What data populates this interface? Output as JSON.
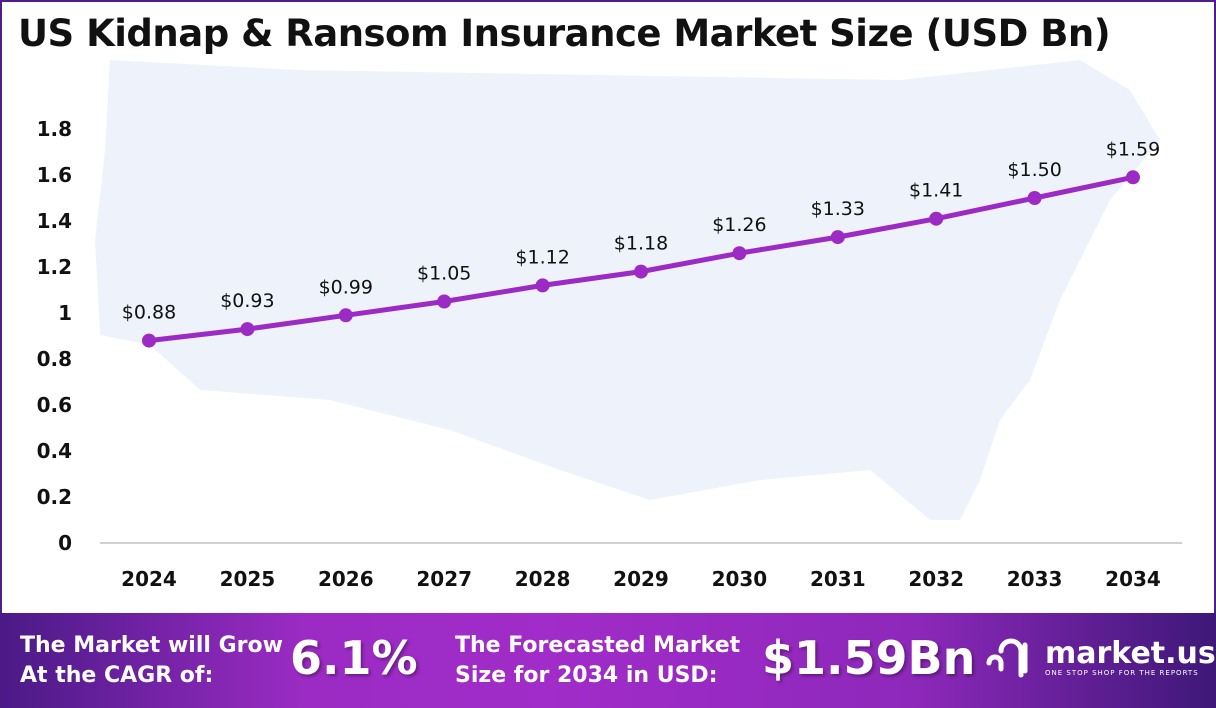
{
  "chart_data": {
    "type": "line",
    "title": "US Kidnap & Ransom Insurance Market Size (USD Bn)",
    "categories": [
      "2024",
      "2025",
      "2026",
      "2027",
      "2028",
      "2029",
      "2030",
      "2031",
      "2032",
      "2033",
      "2034"
    ],
    "values": [
      0.88,
      0.93,
      0.99,
      1.05,
      1.12,
      1.18,
      1.26,
      1.33,
      1.41,
      1.5,
      1.59
    ],
    "data_labels": [
      "$0.88",
      "$0.93",
      "$0.99",
      "$1.05",
      "$1.12",
      "$1.18",
      "$1.26",
      "$1.33",
      "$1.41",
      "$1.50",
      "$1.59"
    ],
    "yticks": [
      "0",
      "0.2",
      "0.4",
      "0.6",
      "0.8",
      "1",
      "1.2",
      "1.4",
      "1.6",
      "1.8"
    ],
    "ylim": [
      0,
      1.8
    ],
    "xlabel": "",
    "ylabel": "",
    "grid": false,
    "line_color": "#9b2bc4"
  },
  "footer": {
    "cagr_label_line1": "The Market will Grow",
    "cagr_label_line2": "At the CAGR of:",
    "cagr_value": "6.1%",
    "forecast_label_line1": "The Forecasted Market",
    "forecast_label_line2": "Size for 2034 in USD:",
    "forecast_value": "$1.59Bn",
    "logo_name": "market.us",
    "logo_tagline": "ONE STOP SHOP FOR THE REPORTS"
  }
}
